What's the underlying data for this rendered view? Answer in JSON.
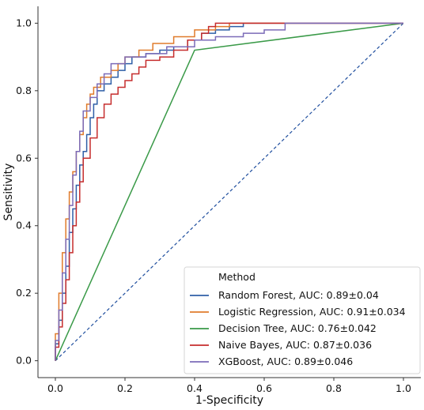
{
  "chart_data": {
    "type": "line",
    "title": "",
    "xlabel": "1-Specificity",
    "ylabel": "Sensitivity",
    "xlim": [
      -0.05,
      1.05
    ],
    "ylim": [
      -0.05,
      1.05
    ],
    "xticks": [
      "0.0",
      "0.2",
      "0.4",
      "0.6",
      "0.8",
      "1.0"
    ],
    "yticks": [
      "0.0",
      "0.2",
      "0.4",
      "0.6",
      "0.8",
      "1.0"
    ],
    "grid": false,
    "legend": {
      "title": "Method",
      "position": "lower-right",
      "entries": [
        "Random Forest, AUC: 0.89±0.04",
        "Logistic Regression, AUC: 0.91±0.034",
        "Decision Tree, AUC: 0.76±0.042",
        "Naive Bayes, AUC: 0.87±0.036",
        "XGBoost, AUC: 0.89±0.046"
      ]
    },
    "reference_line": {
      "x": [
        0,
        1
      ],
      "y": [
        0,
        1
      ],
      "style": "dashed",
      "color": "#1f4e9e"
    },
    "series": [
      {
        "color": "#2f5fa7",
        "step": true,
        "points": [
          [
            0,
            0
          ],
          [
            0.01,
            0.05
          ],
          [
            0.02,
            0.12
          ],
          [
            0.03,
            0.2
          ],
          [
            0.04,
            0.28
          ],
          [
            0.05,
            0.38
          ],
          [
            0.06,
            0.45
          ],
          [
            0.07,
            0.52
          ],
          [
            0.08,
            0.58
          ],
          [
            0.09,
            0.62
          ],
          [
            0.1,
            0.67
          ],
          [
            0.11,
            0.72
          ],
          [
            0.12,
            0.76
          ],
          [
            0.14,
            0.8
          ],
          [
            0.16,
            0.82
          ],
          [
            0.18,
            0.84
          ],
          [
            0.2,
            0.86
          ],
          [
            0.22,
            0.88
          ],
          [
            0.26,
            0.9
          ],
          [
            0.3,
            0.91
          ],
          [
            0.34,
            0.92
          ],
          [
            0.38,
            0.93
          ],
          [
            0.42,
            0.95
          ],
          [
            0.46,
            0.97
          ],
          [
            0.5,
            0.98
          ],
          [
            0.54,
            0.99
          ],
          [
            0.56,
            1.0
          ],
          [
            1,
            1
          ]
        ]
      },
      {
        "color": "#e07b2b",
        "step": true,
        "points": [
          [
            0,
            0
          ],
          [
            0.01,
            0.08
          ],
          [
            0.02,
            0.2
          ],
          [
            0.03,
            0.32
          ],
          [
            0.04,
            0.42
          ],
          [
            0.05,
            0.5
          ],
          [
            0.06,
            0.56
          ],
          [
            0.07,
            0.62
          ],
          [
            0.08,
            0.67
          ],
          [
            0.09,
            0.72
          ],
          [
            0.1,
            0.76
          ],
          [
            0.11,
            0.79
          ],
          [
            0.13,
            0.81
          ],
          [
            0.16,
            0.84
          ],
          [
            0.18,
            0.86
          ],
          [
            0.2,
            0.88
          ],
          [
            0.24,
            0.9
          ],
          [
            0.28,
            0.92
          ],
          [
            0.34,
            0.94
          ],
          [
            0.4,
            0.96
          ],
          [
            0.46,
            0.98
          ],
          [
            0.5,
            0.99
          ],
          [
            0.52,
            1.0
          ],
          [
            1,
            1
          ]
        ]
      },
      {
        "color": "#3a9a48",
        "step": false,
        "points": [
          [
            0,
            0
          ],
          [
            0.4,
            0.92
          ],
          [
            1,
            1
          ]
        ]
      },
      {
        "color": "#c62d2d",
        "step": true,
        "points": [
          [
            0,
            0
          ],
          [
            0.01,
            0.04
          ],
          [
            0.02,
            0.1
          ],
          [
            0.03,
            0.17
          ],
          [
            0.04,
            0.24
          ],
          [
            0.05,
            0.32
          ],
          [
            0.06,
            0.4
          ],
          [
            0.07,
            0.47
          ],
          [
            0.08,
            0.53
          ],
          [
            0.1,
            0.6
          ],
          [
            0.12,
            0.66
          ],
          [
            0.14,
            0.72
          ],
          [
            0.16,
            0.76
          ],
          [
            0.18,
            0.79
          ],
          [
            0.2,
            0.81
          ],
          [
            0.22,
            0.83
          ],
          [
            0.24,
            0.85
          ],
          [
            0.26,
            0.87
          ],
          [
            0.3,
            0.89
          ],
          [
            0.34,
            0.9
          ],
          [
            0.38,
            0.92
          ],
          [
            0.42,
            0.95
          ],
          [
            0.44,
            0.97
          ],
          [
            0.46,
            0.99
          ],
          [
            0.48,
            1.0
          ],
          [
            1,
            1
          ]
        ]
      },
      {
        "color": "#7b6bb8",
        "step": true,
        "points": [
          [
            0,
            0
          ],
          [
            0.01,
            0.06
          ],
          [
            0.02,
            0.15
          ],
          [
            0.03,
            0.26
          ],
          [
            0.04,
            0.36
          ],
          [
            0.05,
            0.46
          ],
          [
            0.06,
            0.55
          ],
          [
            0.07,
            0.62
          ],
          [
            0.08,
            0.68
          ],
          [
            0.1,
            0.74
          ],
          [
            0.12,
            0.78
          ],
          [
            0.14,
            0.82
          ],
          [
            0.16,
            0.85
          ],
          [
            0.2,
            0.88
          ],
          [
            0.26,
            0.9
          ],
          [
            0.32,
            0.91
          ],
          [
            0.4,
            0.93
          ],
          [
            0.46,
            0.95
          ],
          [
            0.54,
            0.96
          ],
          [
            0.6,
            0.97
          ],
          [
            0.66,
            0.98
          ],
          [
            0.72,
            1.0
          ],
          [
            1,
            1
          ]
        ]
      }
    ]
  }
}
